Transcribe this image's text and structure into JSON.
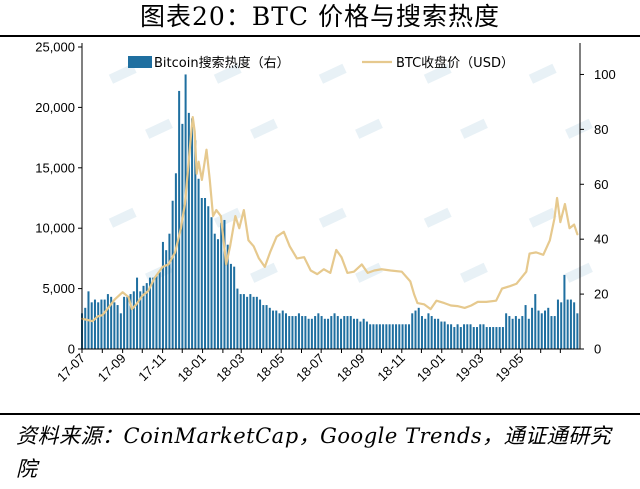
{
  "figure": {
    "title": "图表20：BTC 价格与搜索热度",
    "source": "资料来源：CoinMarketCap，Google Trends，通证通研究院"
  },
  "chart_data": {
    "type": "bar+line",
    "series": [
      {
        "name": "Bitcoin搜索热度（右）",
        "type": "bar",
        "axis": "right",
        "color": "#1f6fa0",
        "values": [
          13,
          15,
          21,
          17,
          18,
          17,
          18,
          18,
          20,
          19,
          17,
          16,
          13,
          19,
          19,
          20,
          21,
          26,
          21,
          23,
          24,
          26,
          26,
          27,
          28,
          39,
          36,
          42,
          54,
          64,
          94,
          82,
          100,
          86,
          84,
          76,
          62,
          55,
          55,
          52,
          48,
          42,
          40,
          46,
          47,
          38,
          31,
          30,
          22,
          20,
          20,
          19,
          20,
          19,
          19,
          18,
          16,
          16,
          15,
          14,
          14,
          13,
          14,
          13,
          12,
          12,
          12,
          13,
          12,
          12,
          11,
          11,
          12,
          13,
          12,
          11,
          11,
          12,
          13,
          12,
          11,
          12,
          12,
          12,
          11,
          11,
          10,
          11,
          10,
          9,
          9,
          9,
          9,
          9,
          9,
          9,
          9,
          9,
          9,
          9,
          9,
          9,
          13,
          14,
          15,
          12,
          11,
          13,
          12,
          11,
          11,
          10,
          10,
          9,
          9,
          8,
          9,
          8,
          9,
          9,
          9,
          8,
          8,
          9,
          9,
          8,
          8,
          8,
          8,
          8,
          8,
          13,
          12,
          11,
          12,
          11,
          12,
          16,
          11,
          15,
          20,
          14,
          13,
          14,
          15,
          12,
          12,
          18,
          17,
          27,
          18,
          18,
          17,
          13
        ],
        "x_range": [
          "2017-07-01",
          "2019-07-27"
        ]
      },
      {
        "name": "BTC收盘价（USD）",
        "type": "line",
        "axis": "left",
        "color": "#e6c98e",
        "points": [
          [
            "2017-07-01",
            2500
          ],
          [
            "2017-07-10",
            2400
          ],
          [
            "2017-07-17",
            2300
          ],
          [
            "2017-07-25",
            2700
          ],
          [
            "2017-08-01",
            2800
          ],
          [
            "2017-08-10",
            3400
          ],
          [
            "2017-08-20",
            4100
          ],
          [
            "2017-09-01",
            4700
          ],
          [
            "2017-09-10",
            4300
          ],
          [
            "2017-09-15",
            3300
          ],
          [
            "2017-09-22",
            3700
          ],
          [
            "2017-10-01",
            4400
          ],
          [
            "2017-10-10",
            4800
          ],
          [
            "2017-10-20",
            5900
          ],
          [
            "2017-11-01",
            6800
          ],
          [
            "2017-11-10",
            7000
          ],
          [
            "2017-11-20",
            8000
          ],
          [
            "2017-11-29",
            10000
          ],
          [
            "2017-12-05",
            12000
          ],
          [
            "2017-12-10",
            15000
          ],
          [
            "2017-12-14",
            17500
          ],
          [
            "2017-12-17",
            19200
          ],
          [
            "2017-12-20",
            18000
          ],
          [
            "2017-12-23",
            14500
          ],
          [
            "2017-12-26",
            15500
          ],
          [
            "2017-12-31",
            14000
          ],
          [
            "2018-01-07",
            16500
          ],
          [
            "2018-01-12",
            14000
          ],
          [
            "2018-01-17",
            11000
          ],
          [
            "2018-01-22",
            11500
          ],
          [
            "2018-01-29",
            11000
          ],
          [
            "2018-02-06",
            7000
          ],
          [
            "2018-02-12",
            8500
          ],
          [
            "2018-02-20",
            11000
          ],
          [
            "2018-02-26",
            10000
          ],
          [
            "2018-03-05",
            11500
          ],
          [
            "2018-03-12",
            9000
          ],
          [
            "2018-03-20",
            8500
          ],
          [
            "2018-03-28",
            7500
          ],
          [
            "2018-04-06",
            6800
          ],
          [
            "2018-04-14",
            8000
          ],
          [
            "2018-04-24",
            9300
          ],
          [
            "2018-05-05",
            9700
          ],
          [
            "2018-05-14",
            8500
          ],
          [
            "2018-05-25",
            7500
          ],
          [
            "2018-06-05",
            7600
          ],
          [
            "2018-06-15",
            6500
          ],
          [
            "2018-06-25",
            6200
          ],
          [
            "2018-07-05",
            6600
          ],
          [
            "2018-07-15",
            6300
          ],
          [
            "2018-07-24",
            8200
          ],
          [
            "2018-08-01",
            7600
          ],
          [
            "2018-08-10",
            6300
          ],
          [
            "2018-08-20",
            6400
          ],
          [
            "2018-09-01",
            7000
          ],
          [
            "2018-09-10",
            6300
          ],
          [
            "2018-09-20",
            6500
          ],
          [
            "2018-10-01",
            6600
          ],
          [
            "2018-10-15",
            6500
          ],
          [
            "2018-11-01",
            6400
          ],
          [
            "2018-11-14",
            5600
          ],
          [
            "2018-11-20",
            4500
          ],
          [
            "2018-11-25",
            3800
          ],
          [
            "2018-12-05",
            3700
          ],
          [
            "2018-12-15",
            3300
          ],
          [
            "2018-12-24",
            4000
          ],
          [
            "2019-01-05",
            3800
          ],
          [
            "2019-01-15",
            3600
          ],
          [
            "2019-01-25",
            3550
          ],
          [
            "2019-02-05",
            3400
          ],
          [
            "2019-02-15",
            3600
          ],
          [
            "2019-02-25",
            3900
          ],
          [
            "2019-03-10",
            3900
          ],
          [
            "2019-03-25",
            4000
          ],
          [
            "2019-04-03",
            5000
          ],
          [
            "2019-04-15",
            5200
          ],
          [
            "2019-04-25",
            5400
          ],
          [
            "2019-05-10",
            6400
          ],
          [
            "2019-05-15",
            7900
          ],
          [
            "2019-05-25",
            8000
          ],
          [
            "2019-06-05",
            7800
          ],
          [
            "2019-06-15",
            9000
          ],
          [
            "2019-06-22",
            10800
          ],
          [
            "2019-06-26",
            12500
          ],
          [
            "2019-07-01",
            10500
          ],
          [
            "2019-07-08",
            12000
          ],
          [
            "2019-07-15",
            10000
          ],
          [
            "2019-07-22",
            10300
          ],
          [
            "2019-07-27",
            9500
          ]
        ]
      }
    ],
    "x_tick_labels": [
      "17-07",
      "17-09",
      "17-11",
      "18-01",
      "18-03",
      "18-05",
      "18-07",
      "18-09",
      "18-11",
      "19-01",
      "19-03",
      "19-05"
    ],
    "x_tick_dates": [
      "2017-07-01",
      "2017-09-01",
      "2017-11-01",
      "2018-01-01",
      "2018-03-01",
      "2018-05-01",
      "2018-07-01",
      "2018-09-01",
      "2018-11-01",
      "2019-01-01",
      "2019-03-01",
      "2019-05-01"
    ],
    "x_range": [
      "2017-07-01",
      "2019-07-31"
    ],
    "y_left": {
      "ticks": [
        0,
        5000,
        10000,
        15000,
        20000,
        25000
      ],
      "tick_labels": [
        "0",
        "5,000",
        "10,000",
        "15,000",
        "20,000",
        "25,000"
      ],
      "range": [
        0,
        25000
      ]
    },
    "y_right": {
      "ticks": [
        0,
        20,
        40,
        60,
        80,
        100
      ],
      "tick_labels": [
        "0",
        "20",
        "40",
        "60",
        "80",
        "100"
      ],
      "range": [
        0,
        110
      ]
    },
    "grid": false,
    "legend_position": "top"
  }
}
